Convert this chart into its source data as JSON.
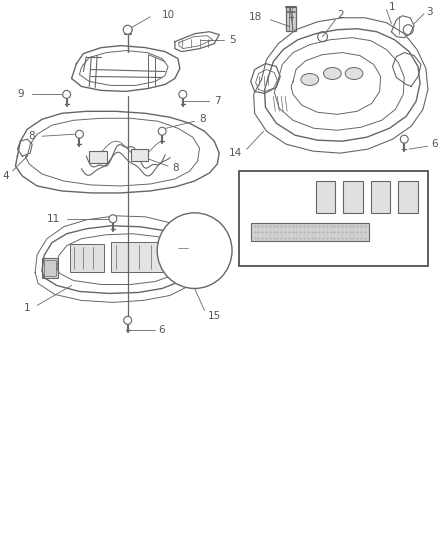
{
  "bg_color": "#ffffff",
  "line_color": "#666666",
  "text_color": "#555555",
  "fig_width": 4.39,
  "fig_height": 5.33,
  "dpi": 100
}
